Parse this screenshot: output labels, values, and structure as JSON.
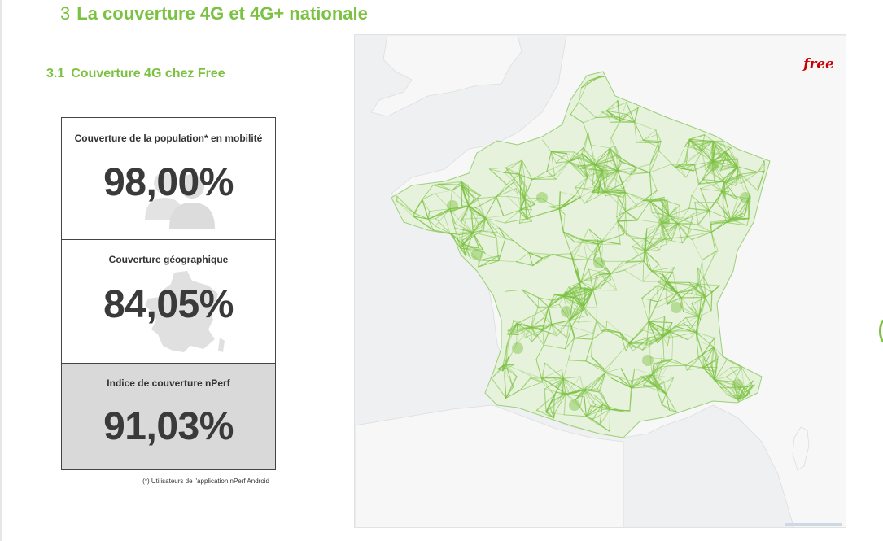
{
  "section": {
    "number": "3",
    "title": "La couverture 4G et 4G+ nationale"
  },
  "subsection": {
    "number": "3.1",
    "title": "Couverture 4G chez Free"
  },
  "stats": [
    {
      "label": "Couverture de la population* en mobilité",
      "value": "98,00%",
      "icon": "users-icon"
    },
    {
      "label": "Couverture géographique",
      "value": "84,05%",
      "icon": "france-map-icon"
    },
    {
      "label": "Indice de couverture nPerf",
      "value": "91,03%"
    }
  ],
  "footnote": "(*) Utilisateurs de l'application nPerf Android",
  "map": {
    "logo": "free",
    "coverage_color": "#7cc242",
    "land_color": "#f7f7f7",
    "sea_color": "#f0f0f0"
  },
  "colors": {
    "accent": "#7cc242",
    "text": "#333333",
    "highlight_box": "#d9d9d9"
  }
}
